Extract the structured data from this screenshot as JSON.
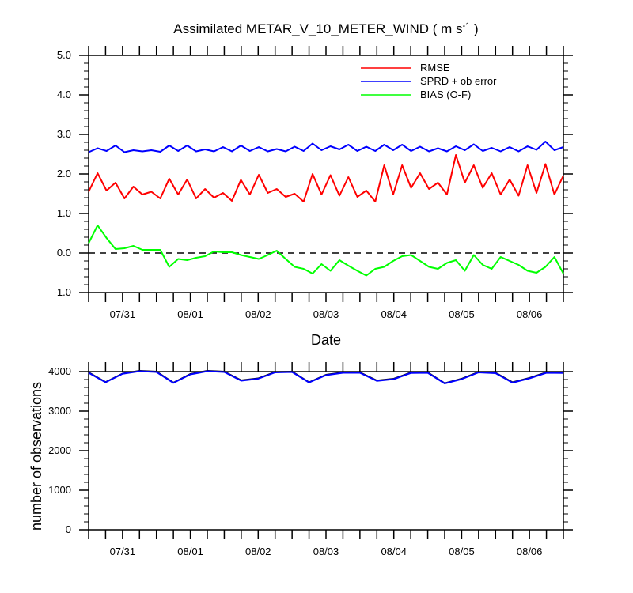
{
  "chart_data": [
    {
      "type": "line",
      "title": "Assimilated METAR_V_10_METER_WIND ( m s",
      "title_sup": "-1",
      "title_end": " )",
      "xlabel": "Date",
      "ylabel": "",
      "ylim": [
        -1.0,
        5.0
      ],
      "yticks": [
        "-1.0",
        "0.0",
        "1.0",
        "2.0",
        "3.0",
        "4.0",
        "5.0"
      ],
      "xticks": [
        "07/31",
        "08/01",
        "08/02",
        "08/03",
        "08/04",
        "08/05",
        "08/06"
      ],
      "legend_position": "top-right",
      "zero_line": "dashed",
      "series": [
        {
          "name": "RMSE",
          "color": "#ff0000",
          "values": [
            1.55,
            2.02,
            1.58,
            1.78,
            1.38,
            1.68,
            1.48,
            1.55,
            1.38,
            1.88,
            1.48,
            1.86,
            1.38,
            1.62,
            1.4,
            1.52,
            1.32,
            1.85,
            1.48,
            1.98,
            1.52,
            1.62,
            1.42,
            1.5,
            1.3,
            2.0,
            1.48,
            1.97,
            1.45,
            1.92,
            1.42,
            1.58,
            1.3,
            2.22,
            1.48,
            2.22,
            1.65,
            2.02,
            1.62,
            1.78,
            1.48,
            2.48,
            1.78,
            2.22,
            1.65,
            2.02,
            1.48,
            1.86,
            1.45,
            2.22,
            1.52,
            2.25,
            1.48,
            1.96
          ]
        },
        {
          "name": "SPRD + ob error",
          "color": "#0000ff",
          "values": [
            2.55,
            2.65,
            2.58,
            2.72,
            2.55,
            2.6,
            2.57,
            2.6,
            2.56,
            2.72,
            2.58,
            2.72,
            2.57,
            2.62,
            2.57,
            2.68,
            2.57,
            2.72,
            2.58,
            2.68,
            2.57,
            2.63,
            2.57,
            2.69,
            2.58,
            2.77,
            2.6,
            2.7,
            2.62,
            2.74,
            2.58,
            2.69,
            2.58,
            2.74,
            2.6,
            2.74,
            2.58,
            2.69,
            2.57,
            2.65,
            2.57,
            2.7,
            2.6,
            2.75,
            2.58,
            2.66,
            2.57,
            2.68,
            2.57,
            2.7,
            2.61,
            2.82,
            2.6,
            2.68
          ]
        },
        {
          "name": "BIAS (O-F)",
          "color": "#00ff00",
          "values": [
            0.25,
            0.7,
            0.38,
            0.1,
            0.12,
            0.18,
            0.08,
            0.08,
            0.08,
            -0.35,
            -0.15,
            -0.18,
            -0.12,
            -0.08,
            0.04,
            0.02,
            0.02,
            -0.05,
            -0.1,
            -0.15,
            -0.05,
            0.06,
            -0.15,
            -0.35,
            -0.4,
            -0.52,
            -0.28,
            -0.45,
            -0.18,
            -0.32,
            -0.45,
            -0.57,
            -0.4,
            -0.35,
            -0.2,
            -0.08,
            -0.05,
            -0.2,
            -0.35,
            -0.4,
            -0.25,
            -0.18,
            -0.45,
            -0.05,
            -0.3,
            -0.4,
            -0.1,
            -0.2,
            -0.3,
            -0.45,
            -0.5,
            -0.35,
            -0.1,
            -0.52
          ]
        }
      ]
    },
    {
      "type": "line",
      "title": "",
      "xlabel": "",
      "ylabel": "number of observations",
      "ylim": [
        0,
        4000
      ],
      "yticks": [
        "0",
        "1000",
        "2000",
        "3000",
        "4000"
      ],
      "xticks": [
        "07/31",
        "08/01",
        "08/02",
        "08/03",
        "08/04",
        "08/05",
        "08/06"
      ],
      "series": [
        {
          "color": "#000000",
          "values": [
            3980,
            3735,
            3950,
            4020,
            4000,
            3720,
            3940,
            4020,
            4000,
            3780,
            3830,
            3990,
            4000,
            3730,
            3920,
            3980,
            3980,
            3775,
            3820,
            3975,
            3980,
            3705,
            3820,
            3990,
            3970,
            3730,
            3840,
            3980,
            3975
          ]
        },
        {
          "color": "#0000ff",
          "values": [
            3970,
            3730,
            3945,
            4010,
            3990,
            3715,
            3930,
            4010,
            3990,
            3770,
            3820,
            3980,
            3990,
            3725,
            3910,
            3970,
            3970,
            3765,
            3810,
            3965,
            3970,
            3700,
            3810,
            3980,
            3960,
            3720,
            3830,
            3970,
            3965
          ]
        }
      ]
    }
  ]
}
